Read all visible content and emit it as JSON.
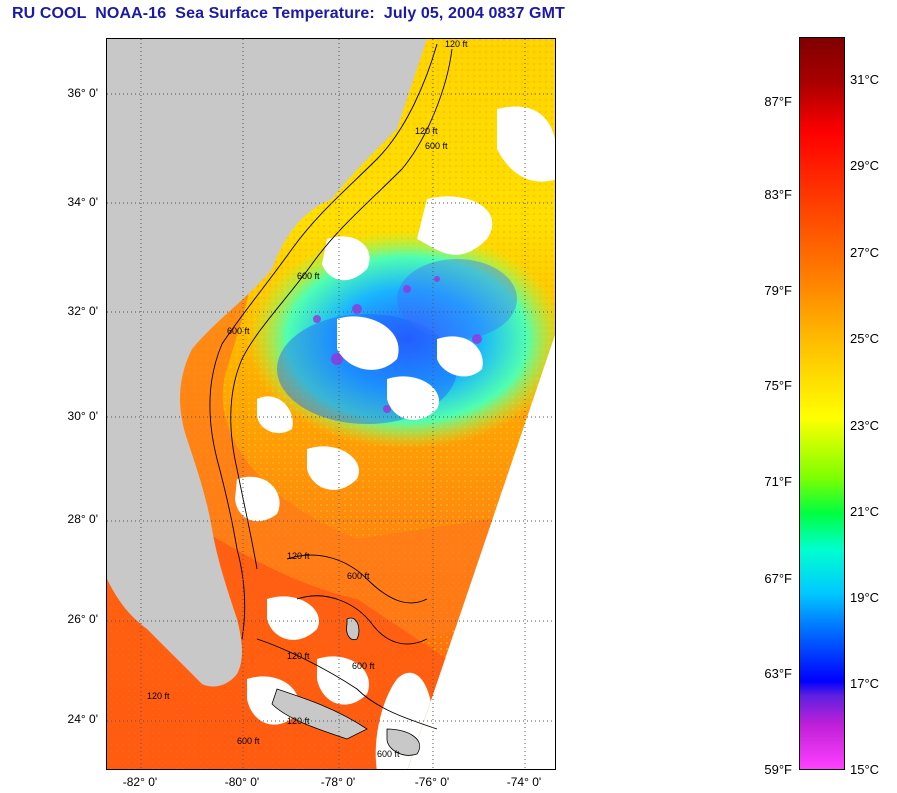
{
  "title": "RU COOL  NOAA-16  Sea Surface Temperature:  July 05, 2004 0837 GMT",
  "map": {
    "lat_ticks": [
      "36° 0'",
      "34° 0'",
      "32° 0'",
      "30° 0'",
      "28° 0'",
      "26° 0'",
      "24° 0'"
    ],
    "lon_ticks": [
      "-82° 0'",
      "-80° 0'",
      "-78° 0'",
      "-76° 0'",
      "-74° 0'"
    ],
    "contours": [
      "120 ft",
      "600 ft",
      "120 ft",
      "600 ft",
      "600 ft",
      "120 ft",
      "600 ft",
      "120 ft",
      "600 ft",
      "120 ft",
      "600 ft",
      "120 ft",
      "600 ft"
    ],
    "colors": {
      "land": "#c8c8c8",
      "cloud": "#ffffff",
      "warm": "#ff7a1a",
      "cool": "#3a9bff"
    }
  },
  "colorbar": {
    "fahrenheit": [
      "87°F",
      "83°F",
      "79°F",
      "75°F",
      "71°F",
      "67°F",
      "63°F",
      "59°F"
    ],
    "celsius": [
      "31°C",
      "29°C",
      "27°C",
      "25°C",
      "23°C",
      "21°C",
      "19°C",
      "17°C",
      "15°C"
    ]
  }
}
